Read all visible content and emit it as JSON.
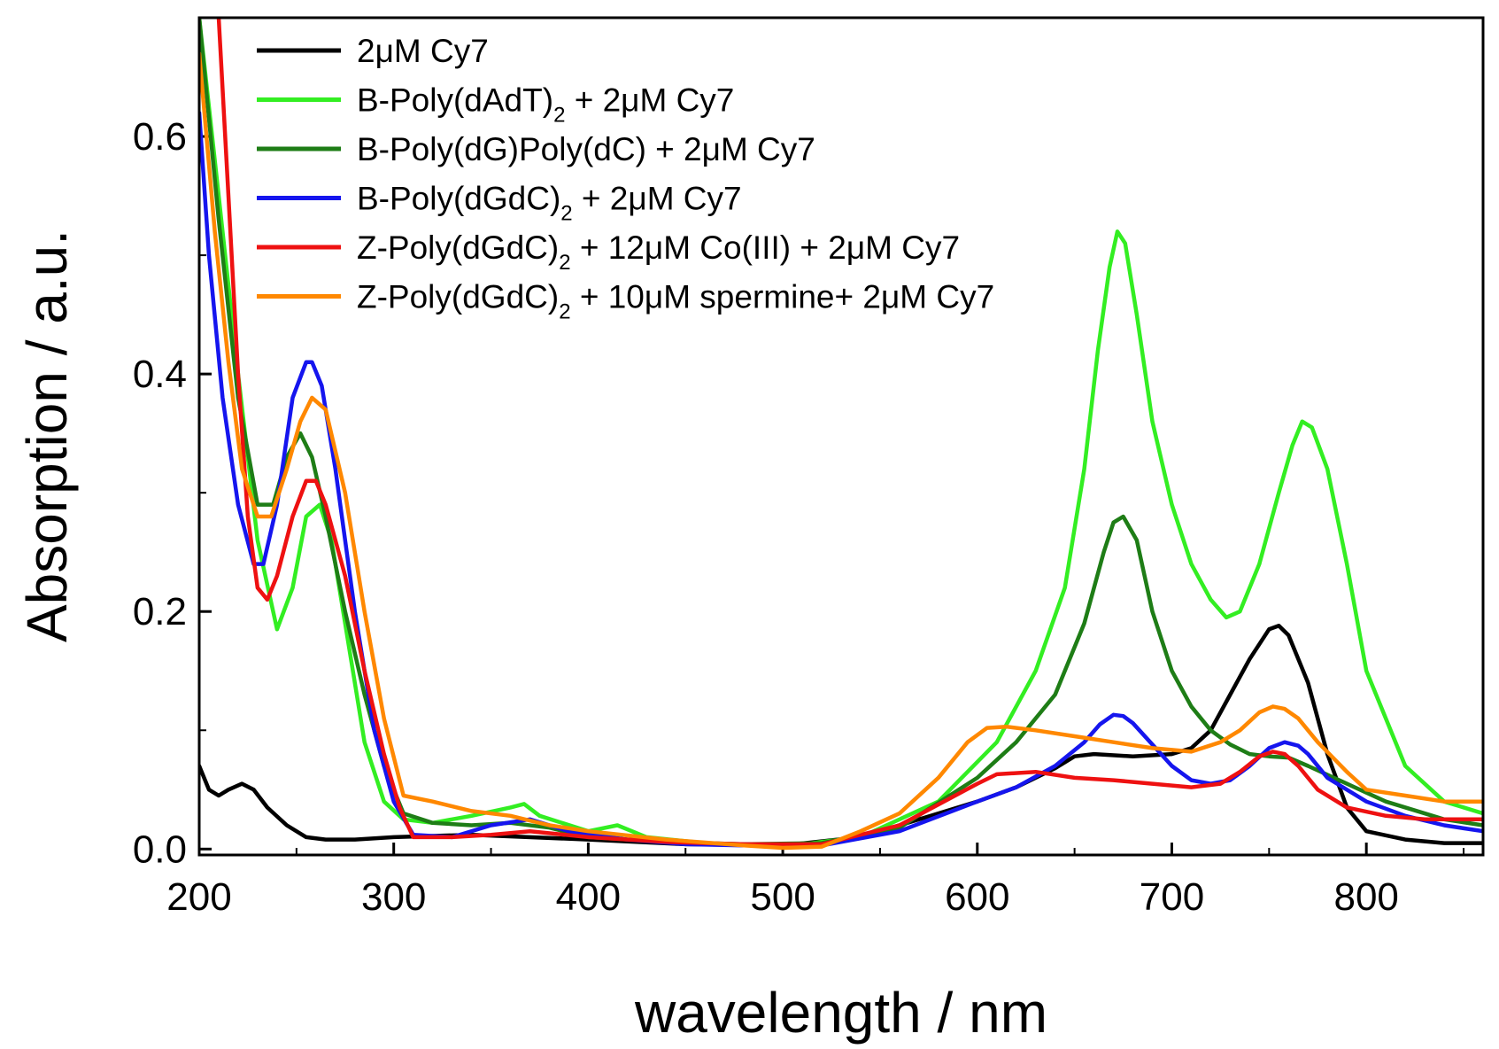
{
  "chart_data": {
    "type": "line",
    "title": "",
    "xlabel": "wavelength / nm",
    "ylabel": "Absorption / a.u.",
    "xlim": [
      200,
      860
    ],
    "ylim": [
      -0.005,
      0.7
    ],
    "xticks": [
      "200",
      "300",
      "400",
      "500",
      "600",
      "700",
      "800"
    ],
    "yticks": [
      "0.0",
      "0.2",
      "0.4",
      "0.6"
    ],
    "legend_position": "top-left",
    "series": [
      {
        "name": "2μM Cy7",
        "legend": {
          "main": "2μM Cy7",
          "sub": "",
          "tail": ""
        },
        "color": "#000000",
        "x": [
          200,
          205,
          210,
          215,
          222,
          228,
          235,
          245,
          255,
          265,
          280,
          300,
          340,
          400,
          450,
          500,
          540,
          580,
          600,
          620,
          640,
          650,
          660,
          680,
          700,
          710,
          720,
          730,
          740,
          750,
          755,
          760,
          770,
          780,
          790,
          800,
          820,
          840,
          860
        ],
        "y": [
          0.07,
          0.05,
          0.045,
          0.05,
          0.055,
          0.05,
          0.035,
          0.02,
          0.01,
          0.008,
          0.008,
          0.01,
          0.012,
          0.008,
          0.004,
          0.003,
          0.01,
          0.03,
          0.04,
          0.052,
          0.068,
          0.078,
          0.08,
          0.078,
          0.08,
          0.085,
          0.1,
          0.13,
          0.16,
          0.185,
          0.188,
          0.18,
          0.14,
          0.08,
          0.035,
          0.015,
          0.008,
          0.005,
          0.005
        ]
      },
      {
        "name": "B-Poly(dAdT)2 + 2μM Cy7",
        "legend": {
          "main": "B-Poly(dAdT)",
          "sub": "2",
          "tail": " + 2μM Cy7"
        },
        "color": "#33ee22",
        "x": [
          200,
          210,
          220,
          230,
          240,
          248,
          255,
          262,
          268,
          275,
          285,
          295,
          305,
          320,
          340,
          360,
          367,
          375,
          400,
          415,
          430,
          460,
          500,
          540,
          580,
          610,
          630,
          645,
          655,
          662,
          668,
          672,
          676,
          682,
          690,
          700,
          710,
          720,
          728,
          735,
          745,
          755,
          762,
          767,
          772,
          780,
          790,
          800,
          820,
          840,
          860
        ],
        "y": [
          0.7,
          0.55,
          0.4,
          0.26,
          0.185,
          0.22,
          0.28,
          0.29,
          0.26,
          0.19,
          0.09,
          0.04,
          0.025,
          0.022,
          0.028,
          0.035,
          0.038,
          0.028,
          0.015,
          0.02,
          0.01,
          0.005,
          0.002,
          0.01,
          0.04,
          0.09,
          0.15,
          0.22,
          0.32,
          0.42,
          0.49,
          0.52,
          0.51,
          0.45,
          0.36,
          0.29,
          0.24,
          0.21,
          0.195,
          0.2,
          0.24,
          0.3,
          0.34,
          0.36,
          0.355,
          0.32,
          0.24,
          0.15,
          0.07,
          0.04,
          0.03
        ]
      },
      {
        "name": "B-Poly(dG)Poly(dC) + 2μM Cy7",
        "legend": {
          "main": "B-Poly(dG)Poly(dC) + 2μM Cy7",
          "sub": "",
          "tail": ""
        },
        "color": "#1e7d16",
        "x": [
          200,
          210,
          220,
          230,
          238,
          245,
          252,
          258,
          265,
          275,
          285,
          295,
          305,
          320,
          340,
          360,
          380,
          400,
          440,
          480,
          520,
          560,
          600,
          620,
          640,
          655,
          665,
          670,
          675,
          682,
          690,
          700,
          710,
          720,
          730,
          740,
          750,
          760,
          770,
          790,
          810,
          840,
          860
        ],
        "y": [
          0.7,
          0.53,
          0.38,
          0.29,
          0.29,
          0.33,
          0.35,
          0.33,
          0.28,
          0.2,
          0.13,
          0.07,
          0.03,
          0.022,
          0.02,
          0.022,
          0.018,
          0.01,
          0.006,
          0.004,
          0.005,
          0.018,
          0.06,
          0.09,
          0.13,
          0.19,
          0.25,
          0.275,
          0.28,
          0.26,
          0.2,
          0.15,
          0.12,
          0.1,
          0.088,
          0.08,
          0.078,
          0.077,
          0.07,
          0.055,
          0.04,
          0.025,
          0.02
        ]
      },
      {
        "name": "B-Poly(dGdC)2 + 2μM Cy7",
        "legend": {
          "main": "B-Poly(dGdC)",
          "sub": "2",
          "tail": " + 2μM Cy7"
        },
        "color": "#1515ee",
        "x": [
          200,
          205,
          212,
          220,
          228,
          233,
          240,
          248,
          255,
          258,
          263,
          270,
          280,
          290,
          300,
          310,
          330,
          350,
          370,
          390,
          420,
          450,
          480,
          520,
          560,
          600,
          620,
          640,
          655,
          663,
          670,
          675,
          680,
          690,
          700,
          710,
          720,
          730,
          740,
          750,
          758,
          765,
          770,
          780,
          800,
          820,
          840,
          860
        ],
        "y": [
          0.62,
          0.5,
          0.38,
          0.29,
          0.24,
          0.24,
          0.29,
          0.38,
          0.41,
          0.41,
          0.39,
          0.32,
          0.2,
          0.1,
          0.04,
          0.012,
          0.01,
          0.02,
          0.025,
          0.015,
          0.008,
          0.004,
          0.003,
          0.003,
          0.015,
          0.04,
          0.052,
          0.07,
          0.09,
          0.105,
          0.113,
          0.112,
          0.106,
          0.088,
          0.07,
          0.058,
          0.055,
          0.058,
          0.07,
          0.085,
          0.09,
          0.087,
          0.08,
          0.06,
          0.04,
          0.028,
          0.02,
          0.015
        ]
      },
      {
        "name": "Z-Poly(dGdC)2 + 12μM Co(III) + 2μM Cy7",
        "legend": {
          "main": "Z-Poly(dGdC)",
          "sub": "2",
          "tail": " + 12μM Co(III) + 2μM Cy7"
        },
        "color": "#ee1111",
        "x": [
          210,
          215,
          220,
          225,
          230,
          235,
          240,
          248,
          255,
          260,
          265,
          275,
          285,
          295,
          303,
          310,
          330,
          350,
          370,
          400,
          440,
          480,
          520,
          560,
          600,
          610,
          630,
          650,
          670,
          690,
          710,
          725,
          735,
          745,
          752,
          758,
          765,
          775,
          790,
          810,
          830,
          860
        ],
        "y": [
          0.7,
          0.55,
          0.4,
          0.28,
          0.22,
          0.21,
          0.23,
          0.28,
          0.31,
          0.31,
          0.29,
          0.23,
          0.15,
          0.08,
          0.035,
          0.01,
          0.01,
          0.012,
          0.015,
          0.01,
          0.006,
          0.004,
          0.004,
          0.02,
          0.055,
          0.063,
          0.065,
          0.06,
          0.058,
          0.055,
          0.052,
          0.055,
          0.065,
          0.078,
          0.082,
          0.08,
          0.07,
          0.05,
          0.035,
          0.028,
          0.025,
          0.025
        ]
      },
      {
        "name": "Z-Poly(dGdC)2 + 10μM spermine+ 2μM Cy7",
        "legend": {
          "main": "Z-Poly(dGdC)",
          "sub": "2",
          "tail": " + 10μM spermine+ 2μM Cy7"
        },
        "color": "#ff8800",
        "x": [
          200,
          208,
          215,
          222,
          230,
          237,
          245,
          252,
          258,
          265,
          275,
          285,
          295,
          305,
          320,
          340,
          360,
          380,
          400,
          440,
          480,
          500,
          520,
          540,
          560,
          580,
          595,
          605,
          615,
          630,
          650,
          670,
          690,
          710,
          725,
          735,
          745,
          752,
          758,
          765,
          775,
          790,
          800,
          820,
          840,
          860
        ],
        "y": [
          0.67,
          0.52,
          0.41,
          0.32,
          0.28,
          0.28,
          0.32,
          0.36,
          0.38,
          0.37,
          0.3,
          0.2,
          0.11,
          0.045,
          0.04,
          0.032,
          0.028,
          0.02,
          0.015,
          0.008,
          0.003,
          0.001,
          0.002,
          0.015,
          0.03,
          0.06,
          0.09,
          0.102,
          0.103,
          0.1,
          0.095,
          0.09,
          0.085,
          0.082,
          0.09,
          0.1,
          0.115,
          0.12,
          0.118,
          0.11,
          0.09,
          0.065,
          0.05,
          0.045,
          0.04,
          0.04
        ]
      }
    ]
  }
}
